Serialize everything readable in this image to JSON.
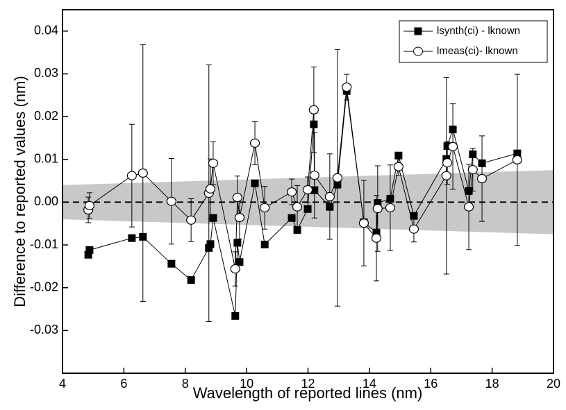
{
  "chart_data": {
    "type": "scatter",
    "xlabel": "Wavelength of reported lines (nm)",
    "ylabel": "Difference to reported values (nm)",
    "xlim": [
      4,
      20
    ],
    "xticks": [
      4,
      6,
      8,
      10,
      12,
      14,
      16,
      18,
      20
    ],
    "ylim": [
      -0.04,
      0.045
    ],
    "yticks": [
      -0.03,
      -0.02,
      -0.01,
      {
        "value": 0,
        "label": "0.00"
      },
      0.01,
      0.02,
      0.03,
      0.04
    ],
    "reference_line": 0,
    "band": {
      "x": [
        4,
        20
      ],
      "upper": [
        0.004,
        0.0075
      ],
      "lower": [
        -0.004,
        -0.0075
      ],
      "color": "#c8c8c8"
    },
    "legend": "upper right",
    "series": [
      {
        "name": "lsynth(ci) - lknown",
        "color": "#000000",
        "marker": "square",
        "x": [
          4.84,
          4.88,
          6.26,
          6.62,
          7.55,
          8.19,
          8.77,
          8.82,
          8.91,
          9.63,
          9.7,
          9.77,
          10.27,
          10.59,
          11.47,
          11.65,
          11.99,
          12.19,
          12.21,
          12.71,
          12.96,
          13.26,
          13.82,
          14.23,
          14.27,
          14.68,
          14.95,
          15.45,
          16.51,
          16.54,
          16.72,
          17.24,
          17.37,
          17.67,
          18.82
        ],
        "values": [
          -0.0123,
          -0.0112,
          -0.0084,
          -0.0081,
          -0.0144,
          -0.0182,
          -0.0107,
          -0.0098,
          -0.0037,
          -0.0266,
          -0.0095,
          -0.014,
          0.0044,
          -0.0099,
          -0.0037,
          -0.0065,
          -0.0016,
          0.0182,
          0.0028,
          -0.0011,
          0.0041,
          0.026,
          -0.0047,
          -0.0071,
          -0.0002,
          0.0008,
          0.0109,
          -0.0032,
          0.0101,
          0.0131,
          0.017,
          0.0026,
          0.0112,
          0.0091,
          0.0114
        ]
      },
      {
        "name": "lmeas(ci)- lknown",
        "color": "#000000",
        "marker": "circle",
        "x": [
          4.84,
          4.88,
          6.26,
          6.62,
          7.55,
          8.19,
          8.77,
          8.82,
          8.91,
          9.63,
          9.7,
          9.77,
          10.27,
          10.59,
          11.47,
          11.65,
          11.99,
          12.19,
          12.21,
          12.71,
          12.96,
          13.26,
          13.82,
          14.23,
          14.27,
          14.68,
          14.95,
          15.45,
          16.51,
          16.54,
          16.72,
          17.24,
          17.37,
          17.67,
          18.82
        ],
        "values": [
          -0.0018,
          -0.0008,
          0.0062,
          0.0068,
          0.0002,
          -0.0042,
          0.0021,
          0.0031,
          0.0091,
          -0.0156,
          0.0011,
          -0.0036,
          0.0138,
          -0.0013,
          0.0024,
          -0.0011,
          0.0029,
          0.0216,
          0.0063,
          0.0013,
          0.0057,
          0.0269,
          -0.0049,
          -0.0084,
          -0.0015,
          -0.0013,
          0.0083,
          -0.0063,
          0.0062,
          0.0092,
          0.013,
          -0.0011,
          0.0076,
          0.0055,
          0.0099
        ],
        "errors": [
          0.003,
          0.003,
          0.012,
          0.03,
          0.01,
          0.005,
          0.03,
          0.007,
          0.005,
          0.004,
          0.005,
          0.005,
          0.005,
          0.005,
          0.003,
          0.005,
          0.003,
          0.01,
          0.01,
          0.01,
          0.03,
          0.003,
          0.01,
          0.01,
          0.01,
          0.01,
          0.002,
          0.003,
          0.023,
          0.005,
          0.01,
          0.01,
          0.005,
          0.01,
          0.02
        ]
      }
    ]
  }
}
